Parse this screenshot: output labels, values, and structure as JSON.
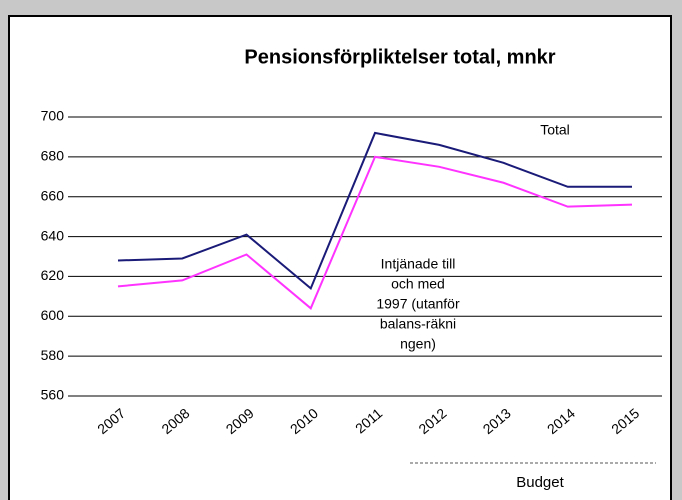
{
  "chart_data": {
    "type": "line",
    "title": "Pensionsförpliktelser total, mnkr",
    "categories": [
      "2007",
      "2008",
      "2009",
      "2010",
      "2011",
      "2012",
      "2013",
      "2014",
      "2015"
    ],
    "series": [
      {
        "name": "Total",
        "color": "#1a1a78",
        "values": [
          628,
          629,
          641,
          614,
          692,
          686,
          677,
          665,
          665
        ]
      },
      {
        "color": "#ff33ff",
        "values": [
          615,
          618,
          631,
          604,
          680,
          675,
          667,
          655,
          656
        ]
      }
    ],
    "annotation": [
      "Intjänade till",
      "och med",
      "1997 (utanför",
      "balans-räkni",
      "ngen)"
    ],
    "budget_label": "Budget",
    "ylim": [
      560,
      700
    ],
    "yticks": [
      560,
      580,
      600,
      620,
      640,
      660,
      680,
      700
    ],
    "grid": true
  }
}
